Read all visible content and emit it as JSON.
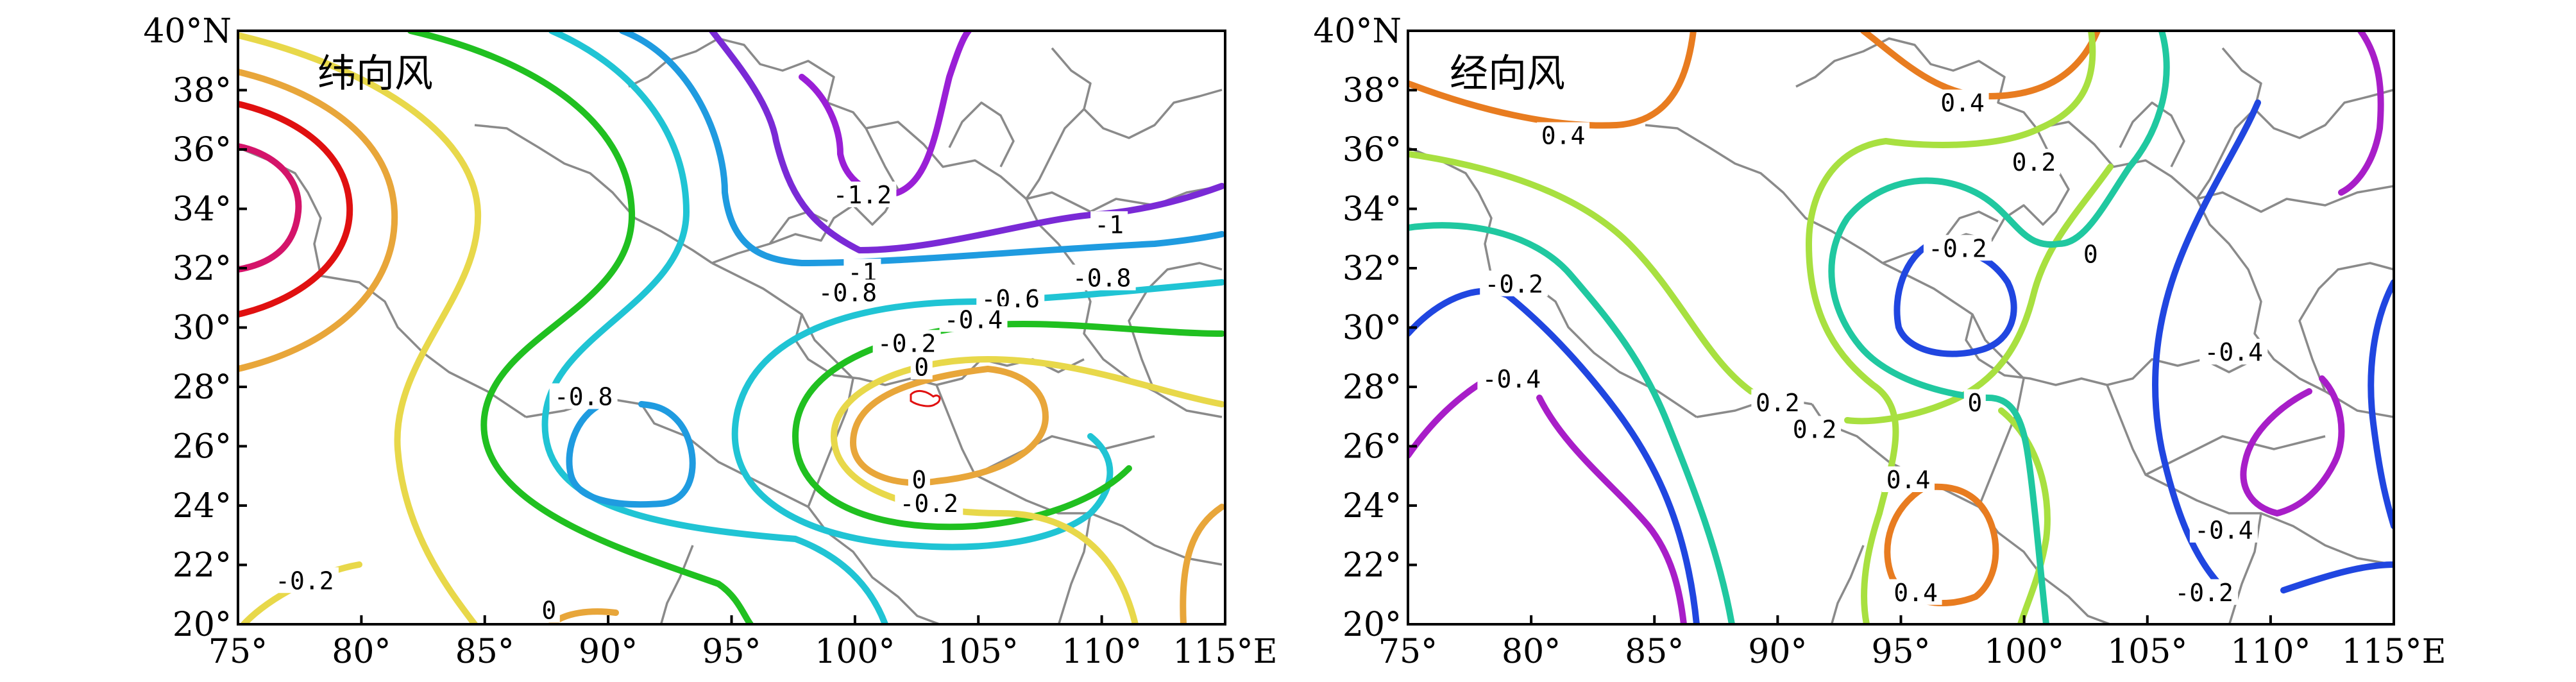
{
  "colors": {
    "c_neg1_2": "#9a1fd6",
    "c_neg1": "#7a2ad6",
    "c_neg0_8": "#1f9be0",
    "c_neg0_6": "#20c4d4",
    "c_neg0_4": "#22c7a0",
    "c_neg0_2": "#20c020",
    "c_0": "#e8d84a",
    "c_0_2": "#e8a63a",
    "c_0_4": "#e85c20",
    "c_0_6": "#e01010",
    "c_0_8": "#d4146a",
    "m_neg0_4": "#a81ec8",
    "m_neg0_2": "#2046e0",
    "m_0": "#20c8a0",
    "m_0_2": "#a8e040",
    "m_0_4": "#e87c20",
    "boundary": "#8a8a8a",
    "red_small": "#e01010"
  },
  "axes": {
    "lat_ticks": [
      "40°N",
      "38°",
      "36°",
      "34°",
      "32°",
      "30°",
      "28°",
      "26°",
      "24°",
      "22°",
      "20°"
    ],
    "lat_values": [
      40,
      38,
      36,
      34,
      32,
      30,
      28,
      26,
      24,
      22,
      20
    ],
    "lon_ticks": [
      "75°",
      "80°",
      "85°",
      "90°",
      "95°",
      "100°",
      "105°",
      "110°",
      "115°E"
    ],
    "lon_values": [
      75,
      80,
      85,
      90,
      95,
      100,
      105,
      110,
      115
    ],
    "lon_range": [
      75,
      115
    ],
    "lat_range": [
      20,
      40
    ]
  },
  "panels": [
    {
      "title": "纬向风",
      "labels": [
        {
          "text": "-1.2",
          "lon": 100.3,
          "lat": 34.4
        },
        {
          "text": "-1",
          "lon": 110.3,
          "lat": 33.4
        },
        {
          "text": "-1",
          "lon": 100.3,
          "lat": 31.8
        },
        {
          "text": "-0.8",
          "lon": 110.0,
          "lat": 31.6
        },
        {
          "text": "-0.8",
          "lon": 99.7,
          "lat": 31.1
        },
        {
          "text": "-0.6",
          "lon": 106.3,
          "lat": 30.9
        },
        {
          "text": "-0.4",
          "lon": 104.8,
          "lat": 30.2
        },
        {
          "text": "-0.2",
          "lon": 102.1,
          "lat": 29.4
        },
        {
          "text": "0",
          "lon": 102.7,
          "lat": 28.6
        },
        {
          "text": "-0.8",
          "lon": 89.0,
          "lat": 27.6
        },
        {
          "text": "0",
          "lon": 102.6,
          "lat": 24.8
        },
        {
          "text": "-0.2",
          "lon": 103.0,
          "lat": 24.0
        },
        {
          "text": "-0.2",
          "lon": 77.7,
          "lat": 21.4
        },
        {
          "text": "0",
          "lon": 87.6,
          "lat": 20.4
        }
      ]
    },
    {
      "title": "经向风",
      "labels": [
        {
          "text": "0.4",
          "lon": 81.3,
          "lat": 36.4
        },
        {
          "text": "0.4",
          "lon": 97.5,
          "lat": 37.5
        },
        {
          "text": "0.2",
          "lon": 100.4,
          "lat": 35.5
        },
        {
          "text": "-0.2",
          "lon": 97.3,
          "lat": 32.6
        },
        {
          "text": "0",
          "lon": 102.7,
          "lat": 32.4
        },
        {
          "text": "-0.2",
          "lon": 79.3,
          "lat": 31.4
        },
        {
          "text": "-0.4",
          "lon": 108.5,
          "lat": 29.1
        },
        {
          "text": "-0.4",
          "lon": 79.2,
          "lat": 28.2
        },
        {
          "text": "0.2",
          "lon": 90.0,
          "lat": 27.4
        },
        {
          "text": "0",
          "lon": 98.0,
          "lat": 27.4
        },
        {
          "text": "0.2",
          "lon": 91.5,
          "lat": 26.5
        },
        {
          "text": "0.4",
          "lon": 95.3,
          "lat": 24.8
        },
        {
          "text": "-0.4",
          "lon": 108.1,
          "lat": 23.1
        },
        {
          "text": "0.4",
          "lon": 95.6,
          "lat": 21.0
        },
        {
          "text": "-0.2",
          "lon": 107.3,
          "lat": 21.0
        }
      ]
    }
  ]
}
